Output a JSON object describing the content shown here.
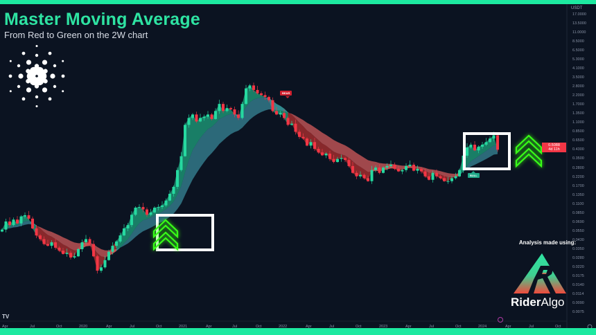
{
  "header": {
    "title": "Master Moving Average",
    "subtitle": "From Red to Green on the 2W chart"
  },
  "branding": {
    "analysis_label": "Analysis made using:",
    "brand_name_bold": "Rider",
    "brand_name_light": "Algo",
    "platform_mark": "TV",
    "coin_logo": "cardano-logo-icon"
  },
  "colors": {
    "accent": "#1de9a0",
    "bull": "#26d9a0",
    "bear": "#f23645",
    "background": "#0b1321",
    "arrow": "#39ff14"
  },
  "signals": {
    "bear_label": "BEAR",
    "bull_label": "BULL"
  },
  "price_tag": {
    "price": "0.5088",
    "countdown": "4d 11h"
  },
  "chart_data": {
    "type": "candlestick",
    "interval": "2W",
    "y_scale": "log",
    "unit": "USDT",
    "ylim": [
      0.0075,
      17
    ],
    "grid": false,
    "y_ticks": [
      "17.0000",
      "13.5000",
      "11.0000",
      "8.5000",
      "6.5000",
      "5.3000",
      "4.1000",
      "3.5000",
      "2.8000",
      "2.2000",
      "1.7000",
      "1.3500",
      "1.1000",
      "0.8500",
      "0.6500",
      "0.4300",
      "0.3500",
      "0.2800",
      "0.2200",
      "0.1700",
      "0.1350",
      "0.1100",
      "0.0850",
      "0.0690",
      "0.0550",
      "0.0430",
      "0.0350",
      "0.0280",
      "0.0220",
      "0.0175",
      "0.0140",
      "0.0114",
      "0.0090",
      "0.0075"
    ],
    "x_ticks": [
      "Apr",
      "Jul",
      "Oct",
      "2020",
      "Apr",
      "Jul",
      "Oct",
      "2021",
      "Apr",
      "Jul",
      "Oct",
      "2022",
      "Apr",
      "Jul",
      "Oct",
      "2023",
      "Apr",
      "Jul",
      "Oct",
      "2024",
      "Apr",
      "Jul",
      "Oct"
    ],
    "closes": [
      0.064,
      0.079,
      0.072,
      0.083,
      0.075,
      0.09,
      0.093,
      0.085,
      0.066,
      0.055,
      0.05,
      0.044,
      0.042,
      0.046,
      0.04,
      0.037,
      0.034,
      0.035,
      0.031,
      0.032,
      0.0385,
      0.046,
      0.05,
      0.044,
      0.032,
      0.022,
      0.024,
      0.029,
      0.036,
      0.042,
      0.047,
      0.055,
      0.066,
      0.072,
      0.094,
      0.113,
      0.115,
      0.108,
      0.094,
      0.1,
      0.113,
      0.115,
      0.12,
      0.136,
      0.162,
      0.194,
      0.3,
      0.43,
      0.97,
      1.16,
      1.27,
      1.06,
      1.16,
      1.2,
      1.27,
      1.13,
      1.39,
      1.67,
      1.39,
      1.5,
      1.45,
      1.27,
      1.16,
      1.67,
      2.5,
      2.7,
      2.4,
      2.2,
      2.1,
      2.0,
      1.84,
      1.39,
      1.27,
      1.32,
      1.16,
      0.97,
      1.0,
      0.81,
      0.71,
      0.68,
      0.566,
      0.62,
      0.52,
      0.474,
      0.44,
      0.46,
      0.4,
      0.37,
      0.4,
      0.41,
      0.39,
      0.333,
      0.279,
      0.255,
      0.265,
      0.243,
      0.225,
      0.3,
      0.32,
      0.279,
      0.32,
      0.333,
      0.345,
      0.31,
      0.29,
      0.3,
      0.333,
      0.345,
      0.295,
      0.31,
      0.29,
      0.255,
      0.233,
      0.279,
      0.255,
      0.243,
      0.225,
      0.225,
      0.243,
      0.255,
      0.3,
      0.436,
      0.54,
      0.58,
      0.5,
      0.55,
      0.58,
      0.62,
      0.68,
      0.74,
      0.5088
    ]
  }
}
